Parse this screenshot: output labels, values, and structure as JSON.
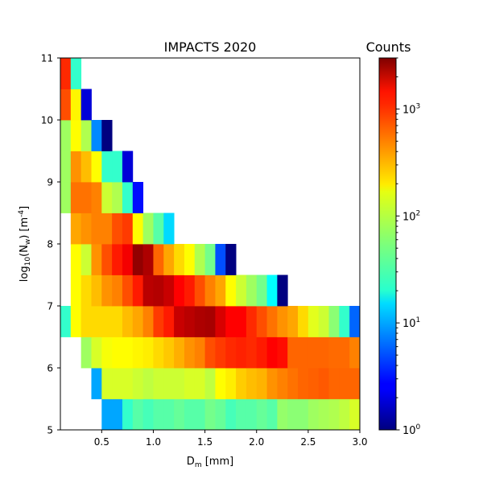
{
  "chart_data": {
    "type": "heatmap",
    "title": "IMPACTS 2020",
    "xlabel": "D$_m$ [mm]",
    "ylabel": "log$_{10}$(N$_w$) [m$^{-4}$]",
    "xlim": [
      0.1,
      3.0
    ],
    "ylim": [
      5,
      11
    ],
    "x_ticks": [
      0.5,
      1.0,
      1.5,
      2.0,
      2.5,
      3.0
    ],
    "x_tick_labels": [
      "0.5",
      "1.0",
      "1.5",
      "2.0",
      "2.5",
      "3.0"
    ],
    "y_ticks": [
      5,
      6,
      7,
      8,
      9,
      10,
      11
    ],
    "y_tick_labels": [
      "5",
      "6",
      "7",
      "8",
      "9",
      "10",
      "11"
    ],
    "x_bin_edges": [
      0.1,
      0.2,
      0.3,
      0.4,
      0.5,
      0.6,
      0.7,
      0.8,
      0.9,
      1.0,
      1.1,
      1.2,
      1.3,
      1.4,
      1.5,
      1.6,
      1.7,
      1.8,
      1.9,
      2.0,
      2.1,
      2.2,
      2.3,
      2.4,
      2.5,
      2.6,
      2.7,
      2.8,
      2.9,
      3.0
    ],
    "y_bin_edges": [
      5.0,
      5.5,
      6.0,
      6.5,
      7.0,
      7.5,
      8.0,
      8.5,
      9.0,
      9.5,
      10.0,
      10.5,
      11.0
    ],
    "colormap": "jet",
    "colorbar": {
      "label": "Counts",
      "scale": "log",
      "range": [
        1,
        3000
      ],
      "ticks": [
        1,
        10,
        100,
        1000
      ],
      "tick_labels": [
        "10^0",
        "10^1",
        "10^2",
        "10^3"
      ],
      "minor_ticks": [
        2,
        3,
        4,
        5,
        6,
        7,
        8,
        9,
        20,
        30,
        40,
        50,
        60,
        70,
        80,
        90,
        200,
        300,
        400,
        500,
        600,
        700,
        800,
        900,
        2000,
        3000
      ]
    },
    "counts": [
      [
        0,
        0,
        0,
        0,
        10,
        10,
        30,
        40,
        35,
        40,
        40,
        45,
        40,
        40,
        50,
        45,
        35,
        40,
        40,
        45,
        40,
        65,
        60,
        60,
        70,
        75,
        80,
        90,
        110
      ],
      [
        0,
        0,
        0,
        10,
        110,
        110,
        110,
        100,
        90,
        100,
        100,
        100,
        110,
        110,
        90,
        150,
        170,
        220,
        250,
        270,
        350,
        400,
        450,
        500,
        520,
        550,
        500,
        500,
        500
      ],
      [
        0,
        0,
        70,
        110,
        140,
        150,
        150,
        160,
        170,
        200,
        230,
        280,
        350,
        400,
        600,
        700,
        800,
        850,
        800,
        900,
        1100,
        1000,
        500,
        500,
        500,
        500,
        480,
        480,
        400
      ],
      [
        30,
        150,
        200,
        200,
        200,
        200,
        250,
        300,
        400,
        700,
        900,
        1700,
        1900,
        2100,
        2200,
        1500,
        1100,
        1100,
        800,
        600,
        450,
        350,
        300,
        200,
        120,
        100,
        60,
        30,
        6
      ],
      [
        0,
        150,
        200,
        250,
        350,
        400,
        600,
        900,
        1900,
        2000,
        1700,
        1100,
        900,
        600,
        400,
        300,
        150,
        100,
        70,
        50,
        20,
        1,
        0,
        0,
        0,
        0,
        0,
        0,
        0
      ],
      [
        0,
        150,
        100,
        350,
        600,
        900,
        1200,
        2600,
        2100,
        500,
        300,
        200,
        150,
        80,
        50,
        5,
        1,
        0,
        0,
        0,
        0,
        0,
        0,
        0,
        0,
        0,
        0,
        0,
        0
      ],
      [
        0,
        300,
        350,
        400,
        400,
        600,
        700,
        150,
        70,
        40,
        15,
        0,
        0,
        0,
        0,
        0,
        0,
        0,
        0,
        0,
        0,
        0,
        0,
        0,
        0,
        0,
        0,
        0,
        0
      ],
      [
        70,
        450,
        450,
        400,
        100,
        80,
        30,
        3,
        0,
        0,
        0,
        0,
        0,
        0,
        0,
        0,
        0,
        0,
        0,
        0,
        0,
        0,
        0,
        0,
        0,
        0,
        0,
        0,
        0
      ],
      [
        70,
        350,
        250,
        150,
        30,
        30,
        2,
        0,
        0,
        0,
        0,
        0,
        0,
        0,
        0,
        0,
        0,
        0,
        0,
        0,
        0,
        0,
        0,
        0,
        0,
        0,
        0,
        0,
        0
      ],
      [
        70,
        150,
        80,
        8,
        1,
        0,
        0,
        0,
        0,
        0,
        0,
        0,
        0,
        0,
        0,
        0,
        0,
        0,
        0,
        0,
        0,
        0,
        0,
        0,
        0,
        0,
        0,
        0,
        0
      ],
      [
        600,
        160,
        2,
        0,
        0,
        0,
        0,
        0,
        0,
        0,
        0,
        0,
        0,
        0,
        0,
        0,
        0,
        0,
        0,
        0,
        0,
        0,
        0,
        0,
        0,
        0,
        0,
        0,
        0
      ],
      [
        800,
        30,
        0,
        0,
        0,
        0,
        0,
        0,
        0,
        0,
        0,
        0,
        0,
        0,
        0,
        0,
        0,
        0,
        0,
        0,
        0,
        0,
        0,
        0,
        0,
        0,
        0,
        0,
        0
      ]
    ]
  }
}
